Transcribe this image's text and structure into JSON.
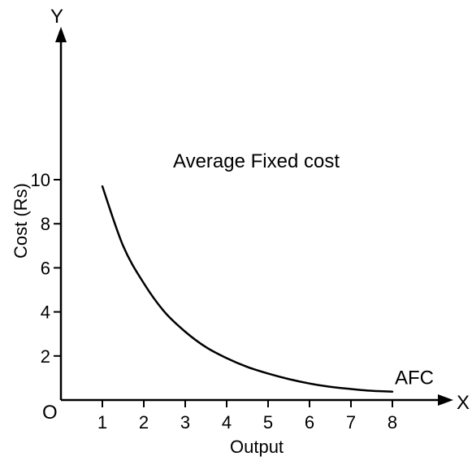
{
  "chart_data": {
    "type": "line",
    "title": "Average Fixed cost",
    "xlabel": "Output",
    "ylabel": "Cost (Rs)",
    "x_axis_letter": "X",
    "y_axis_letter": "Y",
    "origin_label": "O",
    "xlim": [
      0,
      8.6
    ],
    "ylim": [
      0,
      11
    ],
    "x_ticks": [
      1,
      2,
      3,
      4,
      5,
      6,
      7,
      8
    ],
    "y_ticks": [
      2,
      4,
      6,
      8,
      10
    ],
    "grid": false,
    "series": [
      {
        "name": "AFC",
        "x": [
          1,
          1.5,
          2,
          2.5,
          3,
          3.5,
          4,
          4.5,
          5,
          5.5,
          6,
          6.5,
          7,
          7.5,
          8
        ],
        "y": [
          9.7,
          7.0,
          5.3,
          4.0,
          3.1,
          2.4,
          1.9,
          1.5,
          1.2,
          0.95,
          0.75,
          0.6,
          0.5,
          0.42,
          0.38
        ]
      }
    ]
  }
}
